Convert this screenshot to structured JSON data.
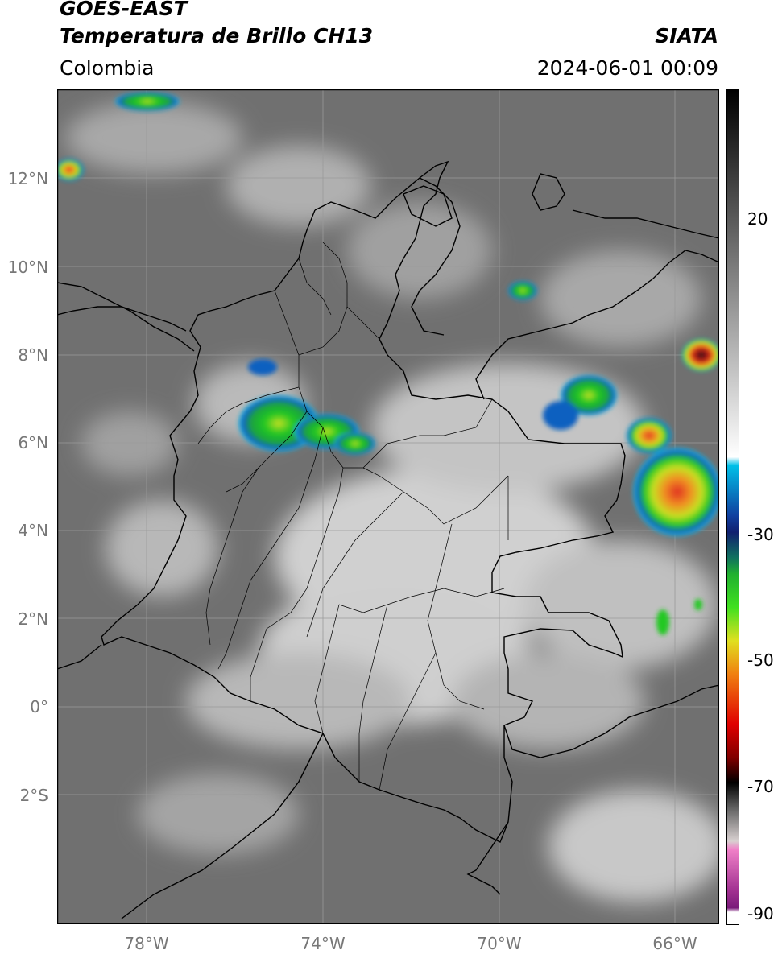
{
  "header": {
    "title_line1": "GOES-EAST",
    "title_line2": "Temperatura de Brillo CH13",
    "region": "Colombia",
    "organization": "SIATA",
    "timestamp": "2024-06-01 00:09"
  },
  "map": {
    "lat_labels": [
      "12°N",
      "10°N",
      "8°N",
      "6°N",
      "4°N",
      "2°N",
      "0°",
      "2°S"
    ],
    "lon_labels": [
      "78°W",
      "74°W",
      "70°W",
      "66°W"
    ],
    "background_color": "#6e6e6e",
    "border_color": "#000000",
    "grid_color": "#9a9a9a"
  },
  "colorbar": {
    "tick_labels": [
      "20",
      "-30",
      "-50",
      "-70",
      "-90"
    ],
    "units_implied": "°C"
  }
}
